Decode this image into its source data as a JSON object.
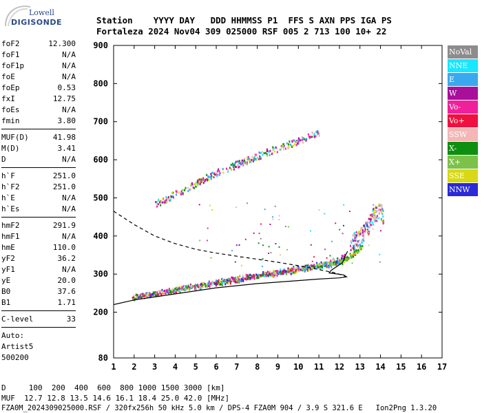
{
  "logo": {
    "line1": "Lowell",
    "line2": "DIGISONDE"
  },
  "header": {
    "line1": "Station    YYYY DAY   DDD HHMMSS P1  FFS S AXN PPS IGA PS",
    "line2": "Fortaleza 2024 Nov04 309 025000 RSF 005 2 713 100 10+ 22"
  },
  "params": {
    "group1": [
      {
        "k": "foF2",
        "v": "12.300"
      },
      {
        "k": "foF1",
        "v": "N/A"
      },
      {
        "k": "foF1p",
        "v": "N/A"
      },
      {
        "k": "foE",
        "v": "N/A"
      },
      {
        "k": "foEp",
        "v": "0.53"
      },
      {
        "k": "fxI",
        "v": "12.75"
      },
      {
        "k": "foEs",
        "v": "N/A"
      },
      {
        "k": "fmin",
        "v": "3.80"
      }
    ],
    "group2": [
      {
        "k": "MUF(D)",
        "v": "41.98"
      },
      {
        "k": "M(D)",
        "v": "3.41"
      },
      {
        "k": "D",
        "v": "N/A"
      }
    ],
    "group3": [
      {
        "k": "h`F",
        "v": "251.0"
      },
      {
        "k": "h`F2",
        "v": "251.0"
      },
      {
        "k": "h`E",
        "v": "N/A"
      },
      {
        "k": "h`Es",
        "v": "N/A"
      }
    ],
    "group4": [
      {
        "k": "hmF2",
        "v": "291.9"
      },
      {
        "k": "hmF1",
        "v": "N/A"
      },
      {
        "k": "hmE",
        "v": "110.0"
      },
      {
        "k": "yF2",
        "v": "36.2"
      },
      {
        "k": "yF1",
        "v": "N/A"
      },
      {
        "k": "yE",
        "v": "20.0"
      },
      {
        "k": "B0",
        "v": "37.6"
      },
      {
        "k": "B1",
        "v": "1.71"
      }
    ],
    "group5": [
      {
        "k": "C-level",
        "v": "33"
      }
    ],
    "auto": [
      "Auto:",
      "Artist5",
      "500200"
    ]
  },
  "legend": [
    {
      "label": "NoVal",
      "color": "#8c8c8c"
    },
    {
      "label": "NNE",
      "color": "#19e6ff"
    },
    {
      "label": "E",
      "color": "#3aa8ef"
    },
    {
      "label": "W",
      "color": "#a8109c"
    },
    {
      "label": "Vo-",
      "color": "#f0209a"
    },
    {
      "label": "Vo+",
      "color": "#f01040"
    },
    {
      "label": "SSW",
      "color": "#f4b6b6"
    },
    {
      "label": "X-",
      "color": "#0f8f0f"
    },
    {
      "label": "X+",
      "color": "#7cc24a"
    },
    {
      "label": "SSE",
      "color": "#d8d818"
    },
    {
      "label": "NNW",
      "color": "#2a2ad8"
    }
  ],
  "footer": {
    "line1": "D     100  200  400  600  800 1000 1500 3000 [km]",
    "line2": "MUF  12.7 12.8 13.5 14.6 16.1 18.4 25.0 42.0 [MHz]",
    "line3": "FZA0M_2024309025000.RSF / 320fx256h 50 kHz 5.0 km / DPS-4 FZA0M 904 / 3.9 S 321.6 E   Ion2Png 1.3.20"
  },
  "chart_data": {
    "type": "scatter",
    "xlim": [
      1,
      17
    ],
    "ylim": [
      80,
      900
    ],
    "x_ticks": [
      1,
      2,
      3,
      4,
      5,
      6,
      7,
      8,
      9,
      10,
      11,
      12,
      13,
      14,
      15,
      16,
      17
    ],
    "y_ticks": [
      80,
      200,
      300,
      400,
      500,
      600,
      700,
      800,
      900
    ],
    "grid": false,
    "trace_o_lower": [
      [
        1.9,
        236
      ],
      [
        2.5,
        243
      ],
      [
        3,
        247
      ],
      [
        4,
        256
      ],
      [
        5,
        265
      ],
      [
        6,
        275
      ],
      [
        7,
        283
      ],
      [
        8,
        293
      ],
      [
        9,
        301
      ],
      [
        10,
        309
      ],
      [
        11,
        318
      ],
      [
        11.5,
        323
      ],
      [
        12,
        332
      ],
      [
        12.3,
        340
      ],
      [
        12.5,
        356
      ],
      [
        12.8,
        372
      ],
      [
        13,
        378
      ]
    ],
    "trace_o_upper": [
      [
        1.9,
        243
      ],
      [
        2.5,
        250
      ],
      [
        3,
        255
      ],
      [
        4,
        265
      ],
      [
        5,
        275
      ],
      [
        6,
        285
      ],
      [
        7,
        294
      ],
      [
        8,
        302
      ],
      [
        9,
        311
      ],
      [
        10,
        321
      ],
      [
        11,
        330
      ],
      [
        11.5,
        336
      ],
      [
        12,
        346
      ],
      [
        12.3,
        358
      ]
    ],
    "trace_x_lower": [
      [
        12,
        330
      ],
      [
        12.4,
        345
      ],
      [
        12.8,
        360
      ],
      [
        13.1,
        375
      ]
    ],
    "trace_second_hop": [
      [
        3,
        485
      ],
      [
        4,
        512
      ],
      [
        5,
        540
      ],
      [
        6,
        568
      ],
      [
        7,
        590
      ],
      [
        8,
        612
      ],
      [
        9,
        632
      ],
      [
        10,
        652
      ],
      [
        10.8,
        668
      ],
      [
        11,
        672
      ]
    ],
    "trace_spread_high": [
      [
        12.5,
        380
      ],
      [
        13,
        400
      ],
      [
        13.3,
        420
      ],
      [
        13.6,
        450
      ],
      [
        13.9,
        470
      ],
      [
        14.1,
        455
      ],
      [
        14.2,
        410
      ]
    ],
    "profile_solid": [
      [
        1,
        220
      ],
      [
        2,
        232
      ],
      [
        4,
        248
      ],
      [
        6,
        264
      ],
      [
        8,
        275
      ],
      [
        10,
        283
      ],
      [
        11,
        287
      ],
      [
        12,
        290
      ],
      [
        12.35,
        293
      ],
      [
        12.2,
        298
      ],
      [
        11.5,
        303
      ],
      [
        11.6,
        310
      ],
      [
        12.15,
        330
      ],
      [
        12.3,
        350
      ],
      [
        12.4,
        360
      ]
    ],
    "profile_dashed": [
      [
        1,
        465
      ],
      [
        2,
        430
      ],
      [
        3,
        400
      ],
      [
        4,
        380
      ],
      [
        5,
        365
      ],
      [
        6,
        355
      ],
      [
        7,
        347
      ],
      [
        8,
        339
      ],
      [
        9,
        331
      ],
      [
        10,
        322
      ],
      [
        11,
        312
      ],
      [
        11.8,
        303
      ],
      [
        12.3,
        294
      ]
    ]
  }
}
